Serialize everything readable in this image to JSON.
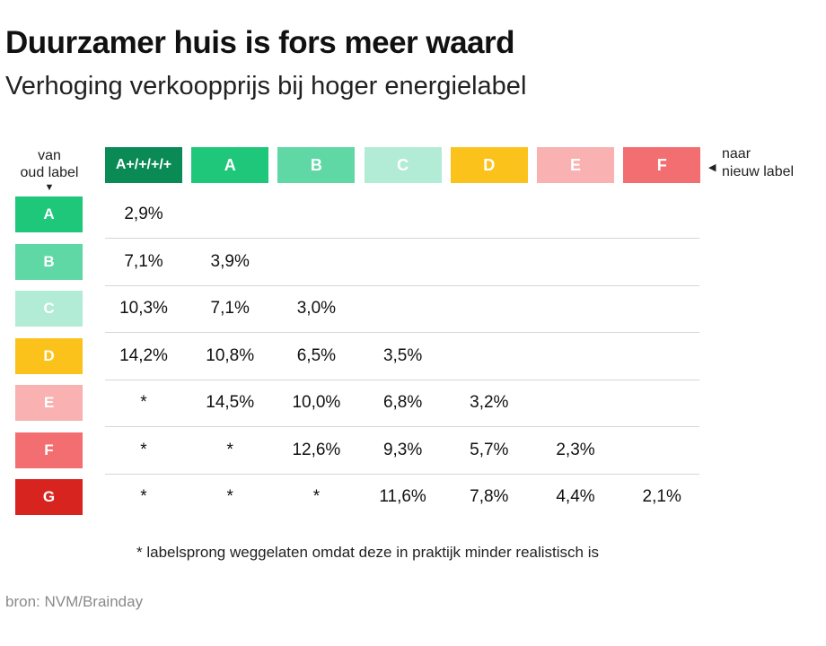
{
  "title": "Duurzamer huis is fors meer waard",
  "subtitle": "Verhoging verkoopprijs bij hoger energielabel",
  "from_label": [
    "van",
    "oud label"
  ],
  "to_label": [
    "naar",
    "nieuw label"
  ],
  "arrow_down": "▼",
  "arrow_left": "◀",
  "footnote": "* labelsprong weggelaten omdat deze in praktijk minder realistisch is",
  "source": "bron: NVM/Brainday",
  "colors": {
    "A+/+/+/+": "#0a8a55",
    "A": "#1fc77a",
    "B": "#5fd8a5",
    "C": "#b3ecd6",
    "D": "#fcc21c",
    "E": "#f9b1b1",
    "F": "#f36e70",
    "G": "#d8241f"
  },
  "chart_data": {
    "type": "table",
    "title": "Duurzamer huis is fors meer waard",
    "subtitle": "Verhoging verkoopprijs bij hoger energielabel",
    "columns": [
      "A+/+/+/+",
      "A",
      "B",
      "C",
      "D",
      "E",
      "F"
    ],
    "rows": [
      "A",
      "B",
      "C",
      "D",
      "E",
      "F",
      "G"
    ],
    "values": [
      [
        "2,9%",
        "",
        "",
        "",
        "",
        "",
        ""
      ],
      [
        "7,1%",
        "3,9%",
        "",
        "",
        "",
        "",
        ""
      ],
      [
        "10,3%",
        "7,1%",
        "3,0%",
        "",
        "",
        "",
        ""
      ],
      [
        "14,2%",
        "10,8%",
        "6,5%",
        "3,5%",
        "",
        "",
        ""
      ],
      [
        "*",
        "14,5%",
        "10,0%",
        "6,8%",
        "3,2%",
        "",
        ""
      ],
      [
        "*",
        "*",
        "12,6%",
        "9,3%",
        "5,7%",
        "2,3%",
        ""
      ],
      [
        "*",
        "*",
        "*",
        "11,6%",
        "7,8%",
        "4,4%",
        "2,1%"
      ]
    ]
  }
}
